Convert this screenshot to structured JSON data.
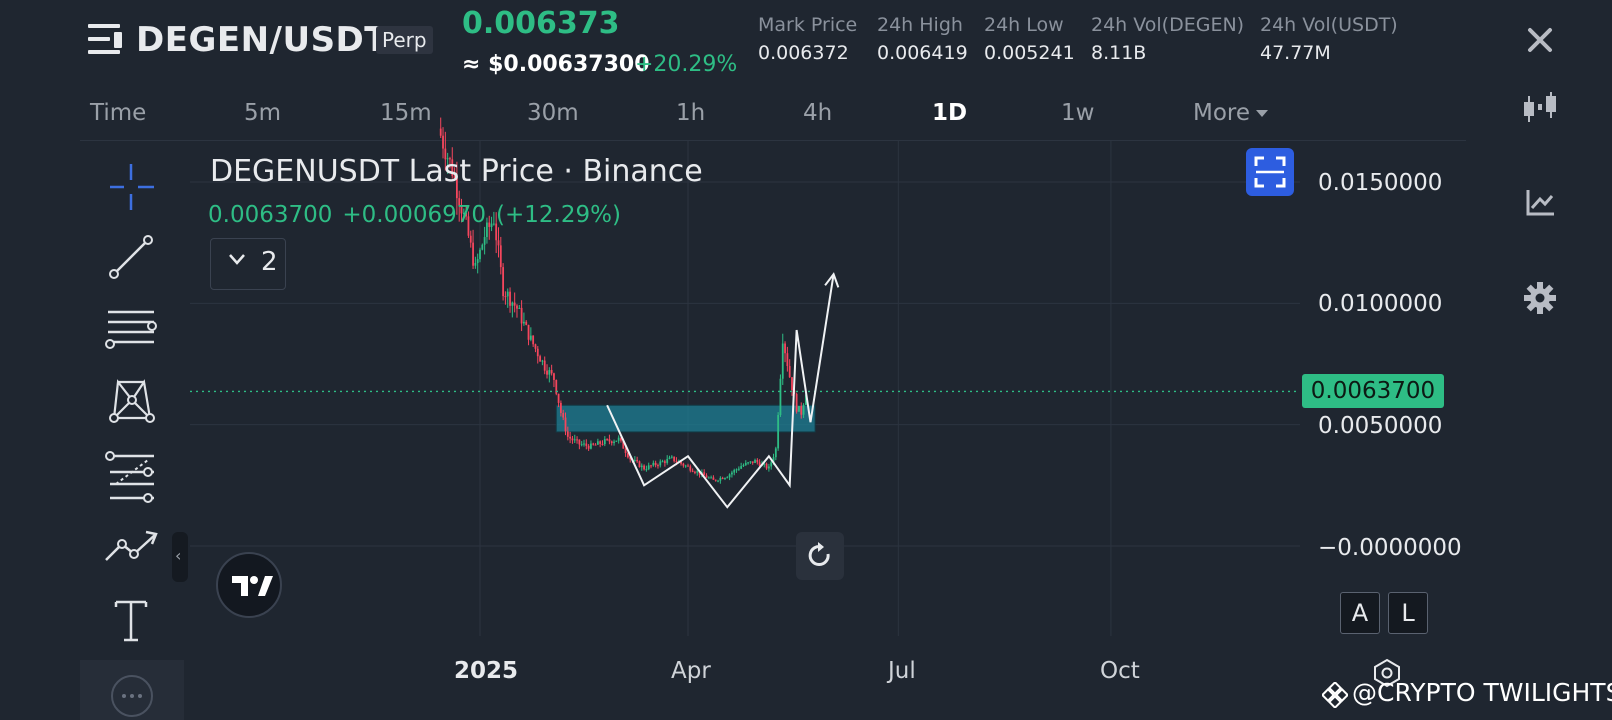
{
  "header": {
    "pair": "DEGEN/USDT",
    "contract_badge": "Perp",
    "last_price": "0.006373",
    "usd_price": "≈ $0.00637300",
    "change_pct": "+20.29%",
    "stats": [
      {
        "label": "Mark Price",
        "value": "0.006372"
      },
      {
        "label": "24h High",
        "value": "0.006419"
      },
      {
        "label": "24h Low",
        "value": "0.005241"
      },
      {
        "label": "24h Vol(DEGEN)",
        "value": "8.11B"
      },
      {
        "label": "24h Vol(USDT)",
        "value": "47.77M"
      }
    ]
  },
  "right_rail": {
    "icons": [
      "close-icon",
      "candlestick-icon",
      "chart-analysis-icon",
      "gear-icon"
    ]
  },
  "timeframes": {
    "items": [
      "Time",
      "5m",
      "15m",
      "30m",
      "1h",
      "4h",
      "1D",
      "1w",
      "More"
    ],
    "active": "1D"
  },
  "drawing_tools": [
    "crosshair-icon",
    "trend-line-icon",
    "parallel-lines-icon",
    "pattern-icon",
    "fib-tool-icon",
    "polyline-icon",
    "text-tool-icon"
  ],
  "chart_legend": {
    "title": "DEGENUSDT Last Price · Binance",
    "price": "0.0063700",
    "change_abs": "+0.0006970",
    "change_pct": "(+12.29%)",
    "indicator_count": "2"
  },
  "chart_data": {
    "type": "candlestick",
    "symbol": "DEGENUSDT",
    "interval": "1D",
    "y_tick_labels": [
      "0.0150000",
      "0.0100000",
      "0.0050000",
      "−0.0000000"
    ],
    "y_ticks": [
      0.015,
      0.01,
      0.005,
      0.0
    ],
    "x_tick_labels": [
      "2025",
      "Apr",
      "Jul",
      "Oct"
    ],
    "last_price_label": "0.0063700",
    "last_price": 0.00637,
    "close_path": [
      [
        "2024-12-14",
        0.0172
      ],
      [
        "2024-12-20",
        0.0155
      ],
      [
        "2024-12-26",
        0.0132
      ],
      [
        "2024-12-30",
        0.0114
      ],
      [
        "2025-01-03",
        0.0128
      ],
      [
        "2025-01-07",
        0.0135
      ],
      [
        "2025-01-11",
        0.0106
      ],
      [
        "2025-01-17",
        0.0098
      ],
      [
        "2025-01-23",
        0.0085
      ],
      [
        "2025-01-29",
        0.0074
      ],
      [
        "2025-02-02",
        0.0069
      ],
      [
        "2025-02-05",
        0.0055
      ],
      [
        "2025-02-08",
        0.0045
      ],
      [
        "2025-02-13",
        0.0042
      ],
      [
        "2025-02-18",
        0.0041
      ],
      [
        "2025-02-24",
        0.0043
      ],
      [
        "2025-03-02",
        0.0044
      ],
      [
        "2025-03-07",
        0.0036
      ],
      [
        "2025-03-13",
        0.0032
      ],
      [
        "2025-03-19",
        0.0034
      ],
      [
        "2025-03-25",
        0.0036
      ],
      [
        "2025-03-31",
        0.0033
      ],
      [
        "2025-04-06",
        0.003
      ],
      [
        "2025-04-12",
        0.0027
      ],
      [
        "2025-04-18",
        0.0029
      ],
      [
        "2025-04-24",
        0.0033
      ],
      [
        "2025-04-30",
        0.0035
      ],
      [
        "2025-05-06",
        0.0032
      ],
      [
        "2025-05-09",
        0.004
      ],
      [
        "2025-05-12",
        0.0086
      ],
      [
        "2025-05-15",
        0.007
      ],
      [
        "2025-05-18",
        0.0057
      ],
      [
        "2025-05-20",
        0.0055
      ],
      [
        "2025-05-22",
        0.0064
      ]
    ],
    "annotations": {
      "zone": {
        "y_range": [
          0.0047,
          0.0058
        ],
        "x_range": [
          "2025-02-03",
          "2025-05-26"
        ]
      },
      "zigzag": [
        [
          "2025-02-25",
          0.0058
        ],
        [
          "2025-03-13",
          0.0025
        ],
        [
          "2025-04-01",
          0.0037
        ],
        [
          "2025-04-18",
          0.0016
        ],
        [
          "2025-05-06",
          0.0037
        ],
        [
          "2025-05-15",
          0.0025
        ],
        [
          "2025-05-18",
          0.0089
        ],
        [
          "2025-05-24",
          0.0051
        ],
        [
          "2025-06-03",
          0.0112
        ]
      ]
    },
    "grid": true
  },
  "buttons": {
    "auto_scale": "A",
    "log_scale": "L"
  },
  "watermark": "@CRYPTO TWILIGHTS",
  "colors": {
    "background": "#1f2630",
    "up": "#2ebd85",
    "down": "#f6465d",
    "zone_fill": "#1e7f94",
    "accent_blue": "#2d5de0"
  }
}
